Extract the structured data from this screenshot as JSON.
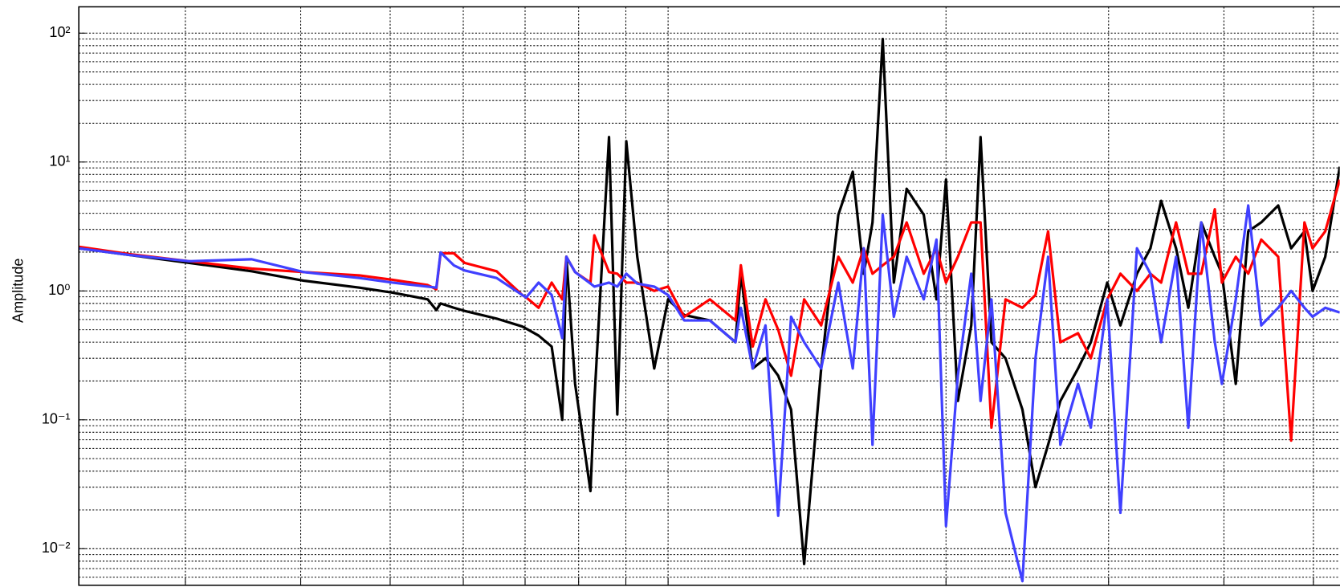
{
  "chart_data": {
    "type": "line",
    "y_label": "Amplitude",
    "x_scale": "log",
    "y_scale": "log",
    "grid": true,
    "xlim": [
      2.3,
      53.4
    ],
    "xticks": [
      3,
      4,
      5,
      6,
      7,
      8,
      9,
      10,
      20,
      30,
      40,
      50
    ],
    "ylim": [
      0.0052,
      160
    ],
    "yticks": [
      {
        "value": 0.01,
        "label": "10⁻²"
      },
      {
        "value": 0.1,
        "label": "10⁻¹"
      },
      {
        "value": 1,
        "label": "10⁰"
      },
      {
        "value": 10,
        "label": "10¹"
      },
      {
        "value": 100,
        "label": "10²"
      }
    ],
    "x": [
      2.3,
      2.61,
      3.03,
      3.54,
      4.03,
      4.63,
      5.03,
      5.49,
      5.61,
      5.67,
      5.86,
      6.02,
      6.52,
      6.95,
      7.02,
      7.24,
      7.48,
      7.68,
      7.76,
      7.93,
      8.24,
      8.32,
      8.63,
      8.81,
      9.01,
      9.26,
      9.66,
      10,
      10.41,
      11.1,
      11.83,
      11.99,
      12.35,
      12.75,
      13.16,
      13.59,
      14.04,
      14.65,
      15.29,
      15.85,
      16.29,
      16.65,
      17.08,
      17.56,
      18.13,
      18.92,
      19.53,
      20.0,
      20.6,
      21.3,
      21.8,
      22.4,
      23.2,
      24.2,
      25.0,
      25.8,
      26.6,
      27.8,
      28.7,
      29.9,
      30.9,
      32.2,
      33.3,
      34.2,
      35.5,
      36.6,
      37.8,
      39.1,
      39.8,
      41.2,
      42.5,
      43.9,
      45.8,
      47.3,
      48.9,
      49.9,
      51.5,
      53.4
    ],
    "series": [
      {
        "color": "#000000",
        "values": [
          2.14,
          1.9,
          1.65,
          1.42,
          1.2,
          1.06,
          0.97,
          0.86,
          0.71,
          0.8,
          0.74,
          0.7,
          0.61,
          0.53,
          0.51,
          0.45,
          0.37,
          0.1,
          1.84,
          0.19,
          0.028,
          0.14,
          15.6,
          0.11,
          14.5,
          1.84,
          0.25,
          0.86,
          0.65,
          0.59,
          0.4,
          1.36,
          0.25,
          0.3,
          0.22,
          0.12,
          0.0076,
          0.25,
          3.9,
          8.4,
          1.36,
          3.4,
          90,
          1.16,
          6.2,
          3.9,
          0.86,
          7.3,
          0.14,
          0.54,
          15.6,
          0.4,
          0.3,
          0.12,
          0.03,
          0.064,
          0.14,
          0.25,
          0.4,
          1.16,
          0.54,
          1.36,
          2.14,
          5.0,
          2.14,
          0.74,
          3.4,
          1.84,
          1.36,
          0.19,
          2.9,
          3.4,
          4.6,
          2.14,
          2.9,
          1.0,
          1.84,
          9.2
        ]
      },
      {
        "color": "#ff0000",
        "values": [
          2.2,
          1.93,
          1.7,
          1.49,
          1.4,
          1.32,
          1.22,
          1.11,
          1.03,
          1.96,
          1.96,
          1.65,
          1.42,
          0.93,
          0.89,
          0.74,
          1.16,
          0.86,
          1.84,
          1.4,
          1.16,
          2.7,
          1.4,
          1.36,
          1.16,
          1.16,
          1.0,
          1.08,
          0.63,
          0.86,
          0.59,
          1.58,
          0.37,
          0.86,
          0.5,
          0.22,
          0.86,
          0.54,
          1.84,
          1.16,
          2.14,
          1.36,
          1.58,
          1.84,
          3.4,
          1.36,
          2.14,
          1.16,
          1.84,
          3.4,
          3.4,
          0.087,
          0.86,
          0.74,
          0.93,
          2.9,
          0.4,
          0.47,
          0.3,
          0.86,
          1.36,
          1.0,
          1.36,
          1.16,
          3.4,
          1.36,
          1.36,
          4.3,
          1.16,
          1.84,
          1.36,
          2.5,
          1.84,
          0.069,
          3.4,
          2.14,
          2.9,
          7.3
        ]
      },
      {
        "color": "#4040ff",
        "values": [
          2.14,
          1.9,
          1.7,
          1.76,
          1.4,
          1.26,
          1.16,
          1.08,
          1.06,
          1.99,
          1.58,
          1.44,
          1.26,
          0.93,
          0.89,
          1.16,
          0.93,
          0.43,
          1.84,
          1.4,
          1.14,
          1.08,
          1.16,
          1.08,
          1.36,
          1.14,
          1.08,
          0.93,
          0.59,
          0.59,
          0.4,
          0.74,
          0.25,
          0.54,
          0.018,
          0.63,
          0.4,
          0.25,
          1.16,
          0.25,
          2.14,
          0.064,
          3.9,
          0.63,
          1.84,
          0.86,
          2.5,
          0.015,
          0.22,
          1.36,
          0.14,
          0.86,
          0.019,
          0.0056,
          0.3,
          1.84,
          0.064,
          0.19,
          0.087,
          0.86,
          0.019,
          2.14,
          1.36,
          0.4,
          1.84,
          0.087,
          3.4,
          0.4,
          0.19,
          0.86,
          4.6,
          0.54,
          0.74,
          1.0,
          0.74,
          0.63,
          0.74,
          0.68
        ]
      }
    ]
  }
}
